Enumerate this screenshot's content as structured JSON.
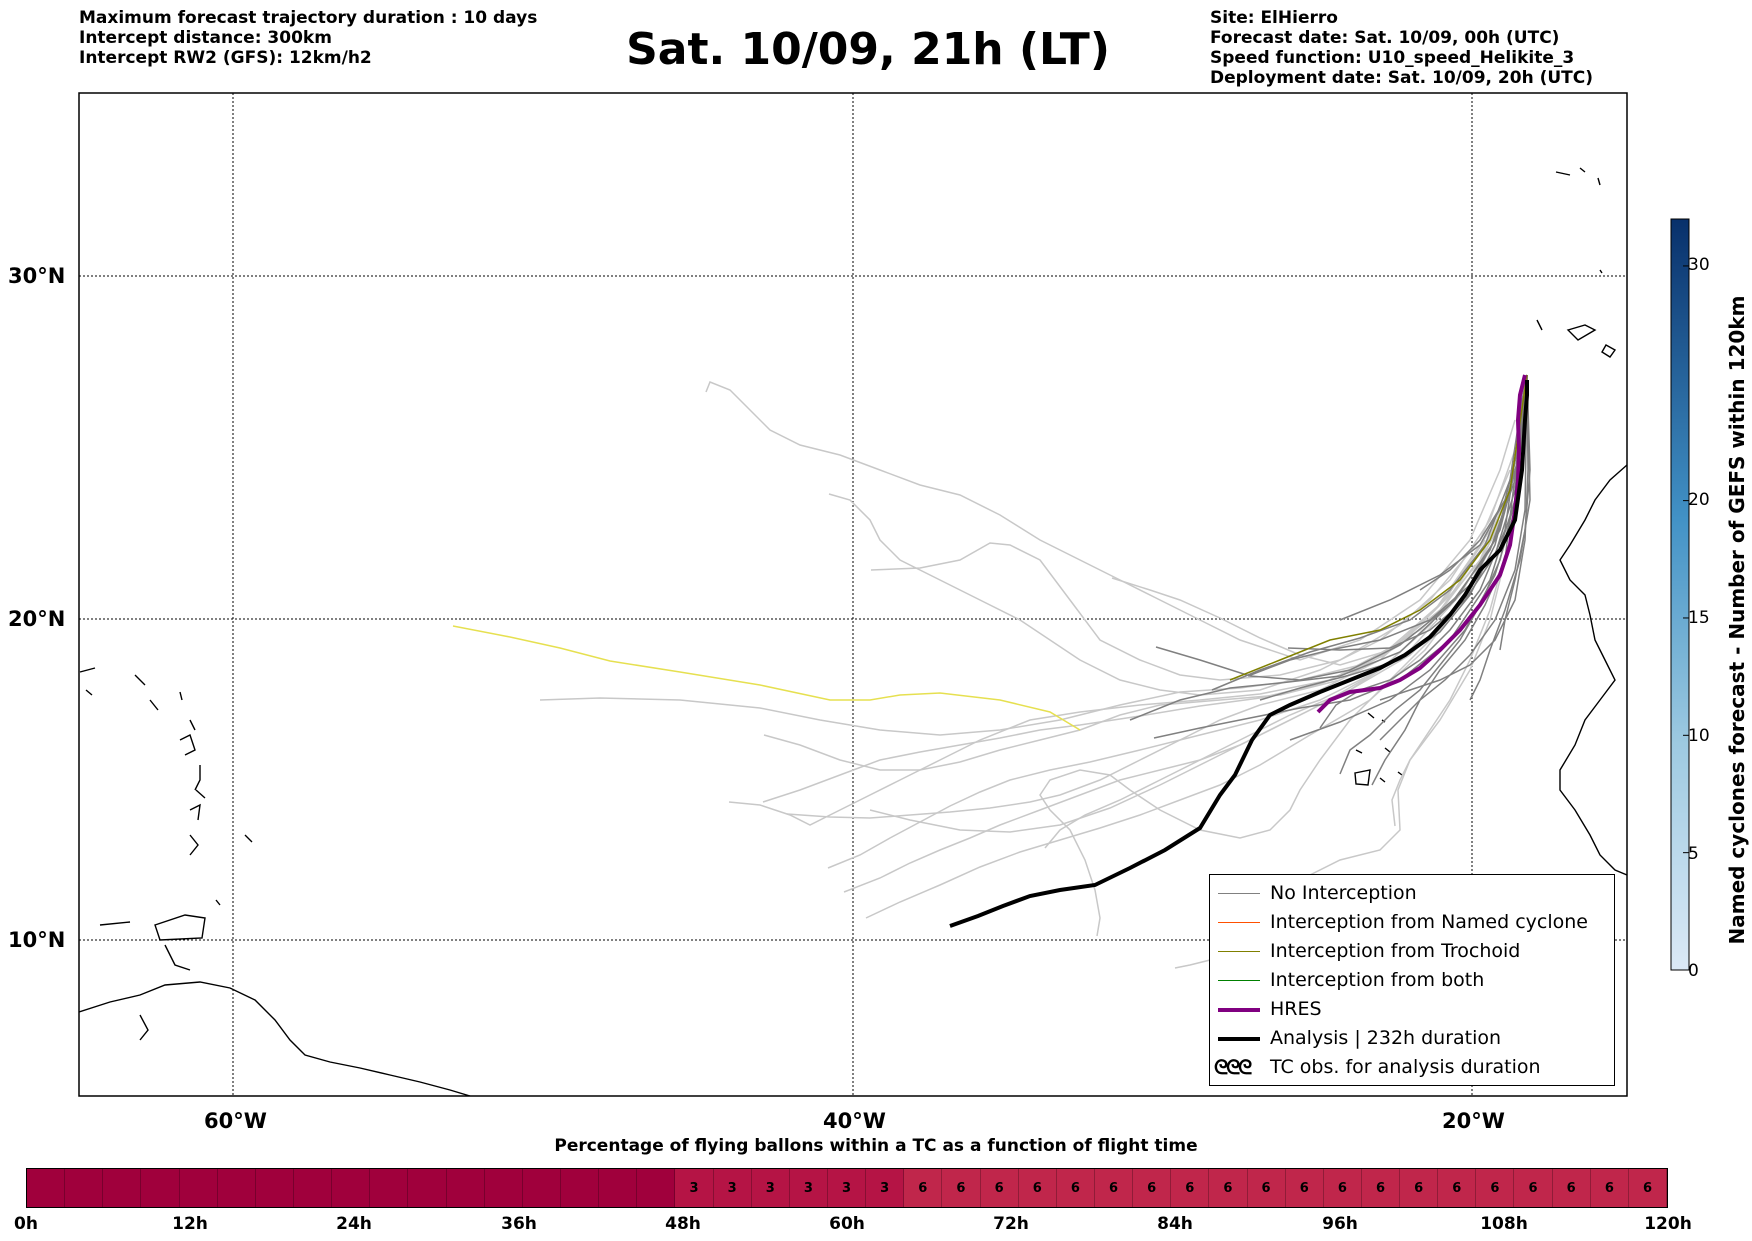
{
  "header": {
    "left_lines": [
      "Maximum forecast trajectory duration : 10 days",
      "Intercept distance: 300km",
      "Intercept RW2 (GFS):  12km/h2"
    ],
    "title": "Sat. 10/09, 21h (LT)",
    "right_lines": [
      "Site: ElHierro",
      "Forecast date: Sat. 10/09, 00h (UTC)",
      "Speed function: U10_speed_Helikite_3",
      "Deployment date: Sat. 10/09, 20h (UTC)"
    ]
  },
  "map": {
    "lat_labels": [
      "30°N",
      "20°N",
      "10°N"
    ],
    "lon_labels": [
      "60°W",
      "40°W",
      "20°W"
    ],
    "colors": {
      "no_interception": "#808080",
      "ensemble_light": "#c8c8c8",
      "named_cyclone": "#ff5000",
      "trochoid": "#808000",
      "both": "#008000",
      "hres": "#800080",
      "analysis": "#000000",
      "yellow_member": "#e6e050"
    }
  },
  "legend": {
    "items": [
      {
        "label": "No Interception",
        "color": "#808080"
      },
      {
        "label": "Interception from Named cyclone",
        "color": "#ff5000"
      },
      {
        "label": "Interception from Trochoid",
        "color": "#808000"
      },
      {
        "label": "Interception from both",
        "color": "#008000"
      },
      {
        "label": "HRES",
        "color": "#800080"
      },
      {
        "label": "Analysis | 232h duration",
        "color": "#000000"
      }
    ],
    "tc_symbol": "ᘓᘓᘓ",
    "tc_label": "TC obs. for analysis duration"
  },
  "colorbar": {
    "label": "Named cyclones forecast - Number of GEFS within 120km",
    "ticks": [
      "30",
      "20",
      "15",
      "10",
      "5",
      "0"
    ],
    "tick_values": [
      30,
      20,
      15,
      10,
      5,
      0
    ],
    "max": 32
  },
  "bottom": {
    "title": "Percentage of flying ballons within a TC as a function of flight time",
    "segments": [
      "",
      "",
      "",
      "",
      "",
      "",
      "",
      "",
      "",
      "",
      "",
      "",
      "",
      "",
      "",
      "",
      "",
      "3",
      "3",
      "3",
      "3",
      "3",
      "3",
      "6",
      "6",
      "6",
      "6",
      "6",
      "6",
      "6",
      "6",
      "6",
      "6",
      "6",
      "6",
      "6",
      "6",
      "6",
      "6",
      "6",
      "6",
      "6",
      "6"
    ],
    "time_labels": [
      "0h",
      "12h",
      "24h",
      "36h",
      "48h",
      "60h",
      "72h",
      "84h",
      "96h",
      "108h",
      "120h"
    ],
    "colors": {
      "0": "#a0003c",
      "3": "#b51445",
      "6": "#c0264b"
    }
  }
}
